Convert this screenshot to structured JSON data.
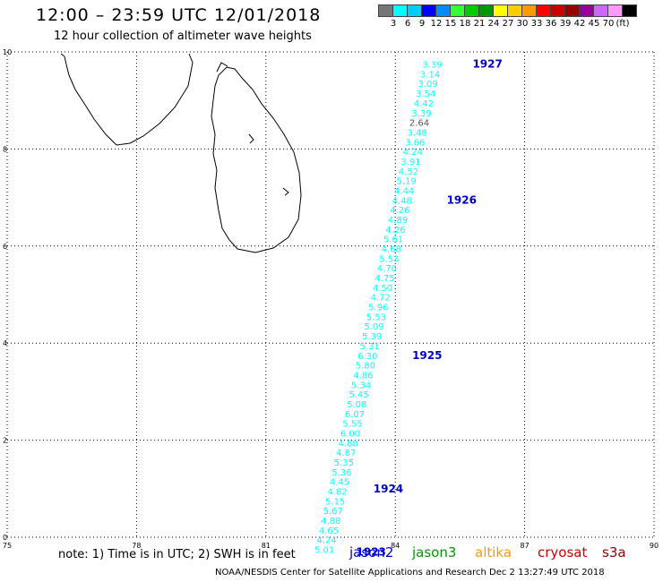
{
  "header": {
    "title": "12:00 – 23:59 UTC 12/01/2018",
    "subtitle": "12 hour collection of altimeter wave heights"
  },
  "scale": {
    "colors": [
      "#777777",
      "#00ffff",
      "#00ccff",
      "#0000ff",
      "#008cff",
      "#33ff33",
      "#00cc00",
      "#009900",
      "#ffff00",
      "#ffcc00",
      "#ff9900",
      "#ff0000",
      "#cc0000",
      "#990000",
      "#990099",
      "#cc66ff",
      "#ff99ff",
      "#000000"
    ],
    "labels": [
      "3",
      "6",
      "9",
      "12",
      "15",
      "18",
      "21",
      "24",
      "27",
      "30",
      "33",
      "36",
      "39",
      "42",
      "45",
      "70",
      "(ft)"
    ]
  },
  "map": {
    "x_ticks": [
      "75",
      "78",
      "81",
      "84",
      "87",
      "90"
    ],
    "y_ticks": [
      "0",
      "2",
      "4",
      "6",
      "8",
      "10"
    ],
    "x_range": [
      75,
      90
    ],
    "y_range": [
      0,
      10
    ],
    "track_color": "#00ffff",
    "time_color": "#0000cc",
    "track": [
      {
        "lon": 85.0,
        "lat": 9.75,
        "v": "3.39"
      },
      {
        "lon": 84.95,
        "lat": 9.55,
        "v": "3.14"
      },
      {
        "lon": 84.9,
        "lat": 9.35,
        "v": "3.09"
      },
      {
        "lon": 84.85,
        "lat": 9.15,
        "v": "3.54"
      },
      {
        "lon": 84.8,
        "lat": 8.95,
        "v": "4.42"
      },
      {
        "lon": 84.75,
        "lat": 8.75,
        "v": "3.39"
      },
      {
        "lon": 84.7,
        "lat": 8.55,
        "v": "2.64",
        "gray": true
      },
      {
        "lon": 84.65,
        "lat": 8.35,
        "v": "3.48"
      },
      {
        "lon": 84.6,
        "lat": 8.15,
        "v": "3.66"
      },
      {
        "lon": 84.55,
        "lat": 7.95,
        "v": "4.24"
      },
      {
        "lon": 84.5,
        "lat": 7.75,
        "v": "3.91"
      },
      {
        "lon": 84.45,
        "lat": 7.55,
        "v": "4.52"
      },
      {
        "lon": 84.4,
        "lat": 7.35,
        "v": "5.19"
      },
      {
        "lon": 84.35,
        "lat": 7.15,
        "v": "4.44"
      },
      {
        "lon": 84.3,
        "lat": 6.95,
        "v": "4.48"
      },
      {
        "lon": 84.25,
        "lat": 6.75,
        "v": "4.26"
      },
      {
        "lon": 84.2,
        "lat": 6.55,
        "v": "4.89"
      },
      {
        "lon": 84.15,
        "lat": 6.35,
        "v": "4.26"
      },
      {
        "lon": 84.1,
        "lat": 6.15,
        "v": "5.61"
      },
      {
        "lon": 84.05,
        "lat": 5.95,
        "v": "4.68"
      },
      {
        "lon": 84.0,
        "lat": 5.75,
        "v": "5.53"
      },
      {
        "lon": 83.95,
        "lat": 5.55,
        "v": "4.70"
      },
      {
        "lon": 83.9,
        "lat": 5.35,
        "v": "4.75"
      },
      {
        "lon": 83.85,
        "lat": 5.15,
        "v": "4.50"
      },
      {
        "lon": 83.8,
        "lat": 4.95,
        "v": "4.72"
      },
      {
        "lon": 83.75,
        "lat": 4.75,
        "v": "5.96"
      },
      {
        "lon": 83.7,
        "lat": 4.55,
        "v": "5.53"
      },
      {
        "lon": 83.65,
        "lat": 4.35,
        "v": "5.09"
      },
      {
        "lon": 83.6,
        "lat": 4.15,
        "v": "5.39"
      },
      {
        "lon": 83.55,
        "lat": 3.95,
        "v": "5.31"
      },
      {
        "lon": 83.5,
        "lat": 3.75,
        "v": "6.30"
      },
      {
        "lon": 83.45,
        "lat": 3.55,
        "v": "5.80"
      },
      {
        "lon": 83.4,
        "lat": 3.35,
        "v": "4.86"
      },
      {
        "lon": 83.35,
        "lat": 3.15,
        "v": "5.34"
      },
      {
        "lon": 83.3,
        "lat": 2.95,
        "v": "5.45"
      },
      {
        "lon": 83.25,
        "lat": 2.75,
        "v": "5.08"
      },
      {
        "lon": 83.2,
        "lat": 2.55,
        "v": "6.07"
      },
      {
        "lon": 83.15,
        "lat": 2.35,
        "v": "5.55"
      },
      {
        "lon": 83.1,
        "lat": 2.15,
        "v": "6.00"
      },
      {
        "lon": 83.05,
        "lat": 1.95,
        "v": "4.88"
      },
      {
        "lon": 83.0,
        "lat": 1.75,
        "v": "4.87"
      },
      {
        "lon": 82.95,
        "lat": 1.55,
        "v": "5.35"
      },
      {
        "lon": 82.9,
        "lat": 1.35,
        "v": "5.36"
      },
      {
        "lon": 82.85,
        "lat": 1.15,
        "v": "4.45"
      },
      {
        "lon": 82.8,
        "lat": 0.95,
        "v": "4.82"
      },
      {
        "lon": 82.75,
        "lat": 0.75,
        "v": "5.15"
      },
      {
        "lon": 82.7,
        "lat": 0.55,
        "v": "5.67"
      },
      {
        "lon": 82.65,
        "lat": 0.35,
        "v": "4.88"
      },
      {
        "lon": 82.6,
        "lat": 0.15,
        "v": "4.65"
      },
      {
        "lon": 82.55,
        "lat": -0.05,
        "v": "4.24"
      },
      {
        "lon": 82.5,
        "lat": -0.25,
        "v": "5.01"
      }
    ],
    "times": [
      {
        "lon": 86.0,
        "lat": 9.75,
        "label": "1927"
      },
      {
        "lon": 85.4,
        "lat": 6.95,
        "label": "1926"
      },
      {
        "lon": 84.6,
        "lat": 3.75,
        "label": "1925"
      },
      {
        "lon": 83.7,
        "lat": 1.0,
        "label": "1924"
      },
      {
        "lon": 83.3,
        "lat": -0.3,
        "label": "1923"
      }
    ]
  },
  "note": "note:  1) Time is in UTC;  2) SWH is in feet",
  "satellites": [
    {
      "name": "jason2",
      "color": "#0000dd"
    },
    {
      "name": "jason3",
      "color": "#009900"
    },
    {
      "name": "altika",
      "color": "#ff9900"
    },
    {
      "name": "cryosat",
      "color": "#cc0000"
    },
    {
      "name": "s3a",
      "color": "#990000"
    }
  ],
  "credit": "NOAA/NESDIS Center for Satellite Applications and Research     Dec  2 13:27:49 UTC 2018"
}
